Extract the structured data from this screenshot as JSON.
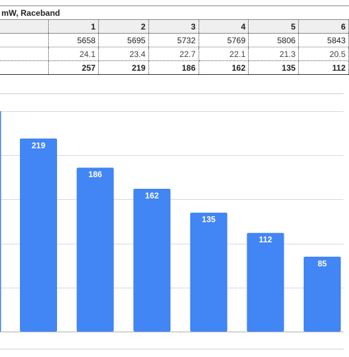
{
  "table": {
    "title": "mW, Raceband",
    "header": [
      "",
      "1",
      "2",
      "3",
      "4",
      "5",
      "6"
    ],
    "rows": [
      [
        "",
        "5658",
        "5695",
        "5732",
        "5769",
        "5806",
        "5843"
      ],
      [
        "",
        "24.1",
        "23.4",
        "22.7",
        "22.1",
        "21.3",
        "20.5"
      ],
      [
        "",
        "257",
        "219",
        "186",
        "162",
        "135",
        "112"
      ]
    ]
  },
  "chart_data": {
    "type": "bar",
    "categories": [
      "",
      "",
      "",
      "",
      "",
      ""
    ],
    "values": [
      219,
      186,
      162,
      135,
      112,
      85
    ],
    "data_labels": [
      "219",
      "186",
      "162",
      "135",
      "112",
      "85"
    ],
    "ylim": [
      0,
      250
    ],
    "grid": true,
    "bar_color": "#4285f4"
  },
  "colors": {
    "bar": "#4285f4",
    "gridline": "#d9d9d9",
    "axis": "#4285f4",
    "header_bg": "#efefef"
  }
}
